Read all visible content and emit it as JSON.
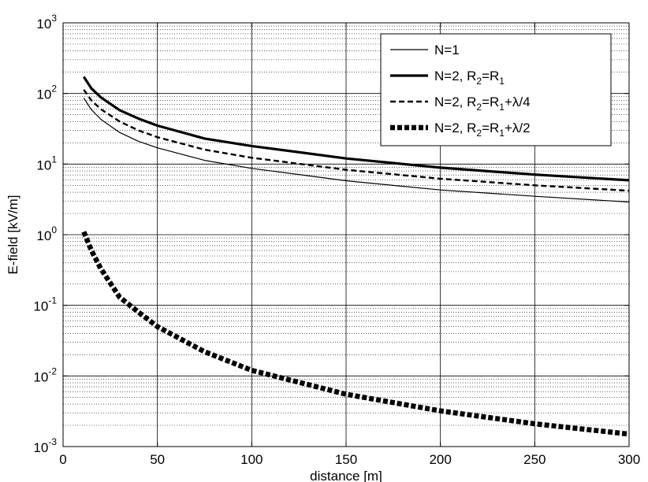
{
  "chart_data": {
    "type": "line",
    "xlabel": "distance [m]",
    "ylabel": "E-field [kV/m]",
    "xlim": [
      0,
      300
    ],
    "ylim": [
      0.001,
      1000
    ],
    "yscale": "log",
    "grid": true,
    "legend_position": "top-right",
    "x_ticks": [
      "0",
      "50",
      "100",
      "150",
      "200",
      "250",
      "300"
    ],
    "y_ticks": [
      {
        "base": "10",
        "exp": "-3"
      },
      {
        "base": "10",
        "exp": "-2"
      },
      {
        "base": "10",
        "exp": "-1"
      },
      {
        "base": "10",
        "exp": "0"
      },
      {
        "base": "10",
        "exp": "1"
      },
      {
        "base": "10",
        "exp": "2"
      },
      {
        "base": "10",
        "exp": "3"
      }
    ],
    "legend": [
      {
        "parts": [
          [
            "N=1",
            ""
          ]
        ]
      },
      {
        "parts": [
          [
            "N=2, R",
            ""
          ],
          [
            "2",
            "sub"
          ],
          [
            "=R",
            ""
          ],
          [
            "1",
            "sub"
          ]
        ]
      },
      {
        "parts": [
          [
            "N=2, R",
            ""
          ],
          [
            "2",
            "sub"
          ],
          [
            "=R",
            ""
          ],
          [
            "1",
            "sub"
          ],
          [
            "+λ/4",
            ""
          ]
        ]
      },
      {
        "parts": [
          [
            "N=2, R",
            ""
          ],
          [
            "2",
            "sub"
          ],
          [
            "=R",
            ""
          ],
          [
            "1",
            "sub"
          ],
          [
            "+λ/2",
            ""
          ]
        ]
      }
    ],
    "x": [
      11,
      15,
      20,
      30,
      40,
      50,
      75,
      100,
      150,
      200,
      250,
      300
    ],
    "series": [
      {
        "values": [
          86,
          59,
          43,
          28,
          21,
          17,
          11.3,
          8.7,
          5.8,
          4.3,
          3.5,
          2.9
        ],
        "style": "thin-solid"
      },
      {
        "values": [
          172,
          118,
          88,
          58,
          44,
          35,
          23,
          18,
          12,
          8.9,
          7.1,
          5.9
        ],
        "style": "thick-solid"
      },
      {
        "values": [
          113,
          80,
          60,
          40,
          30,
          24,
          16,
          12.3,
          8.3,
          6.2,
          5.0,
          4.2
        ],
        "style": "dashed"
      },
      {
        "values": [
          1.1,
          0.6,
          0.33,
          0.13,
          0.08,
          0.05,
          0.022,
          0.012,
          0.0055,
          0.0032,
          0.0021,
          0.0015
        ],
        "style": "thick-dashed"
      }
    ]
  }
}
